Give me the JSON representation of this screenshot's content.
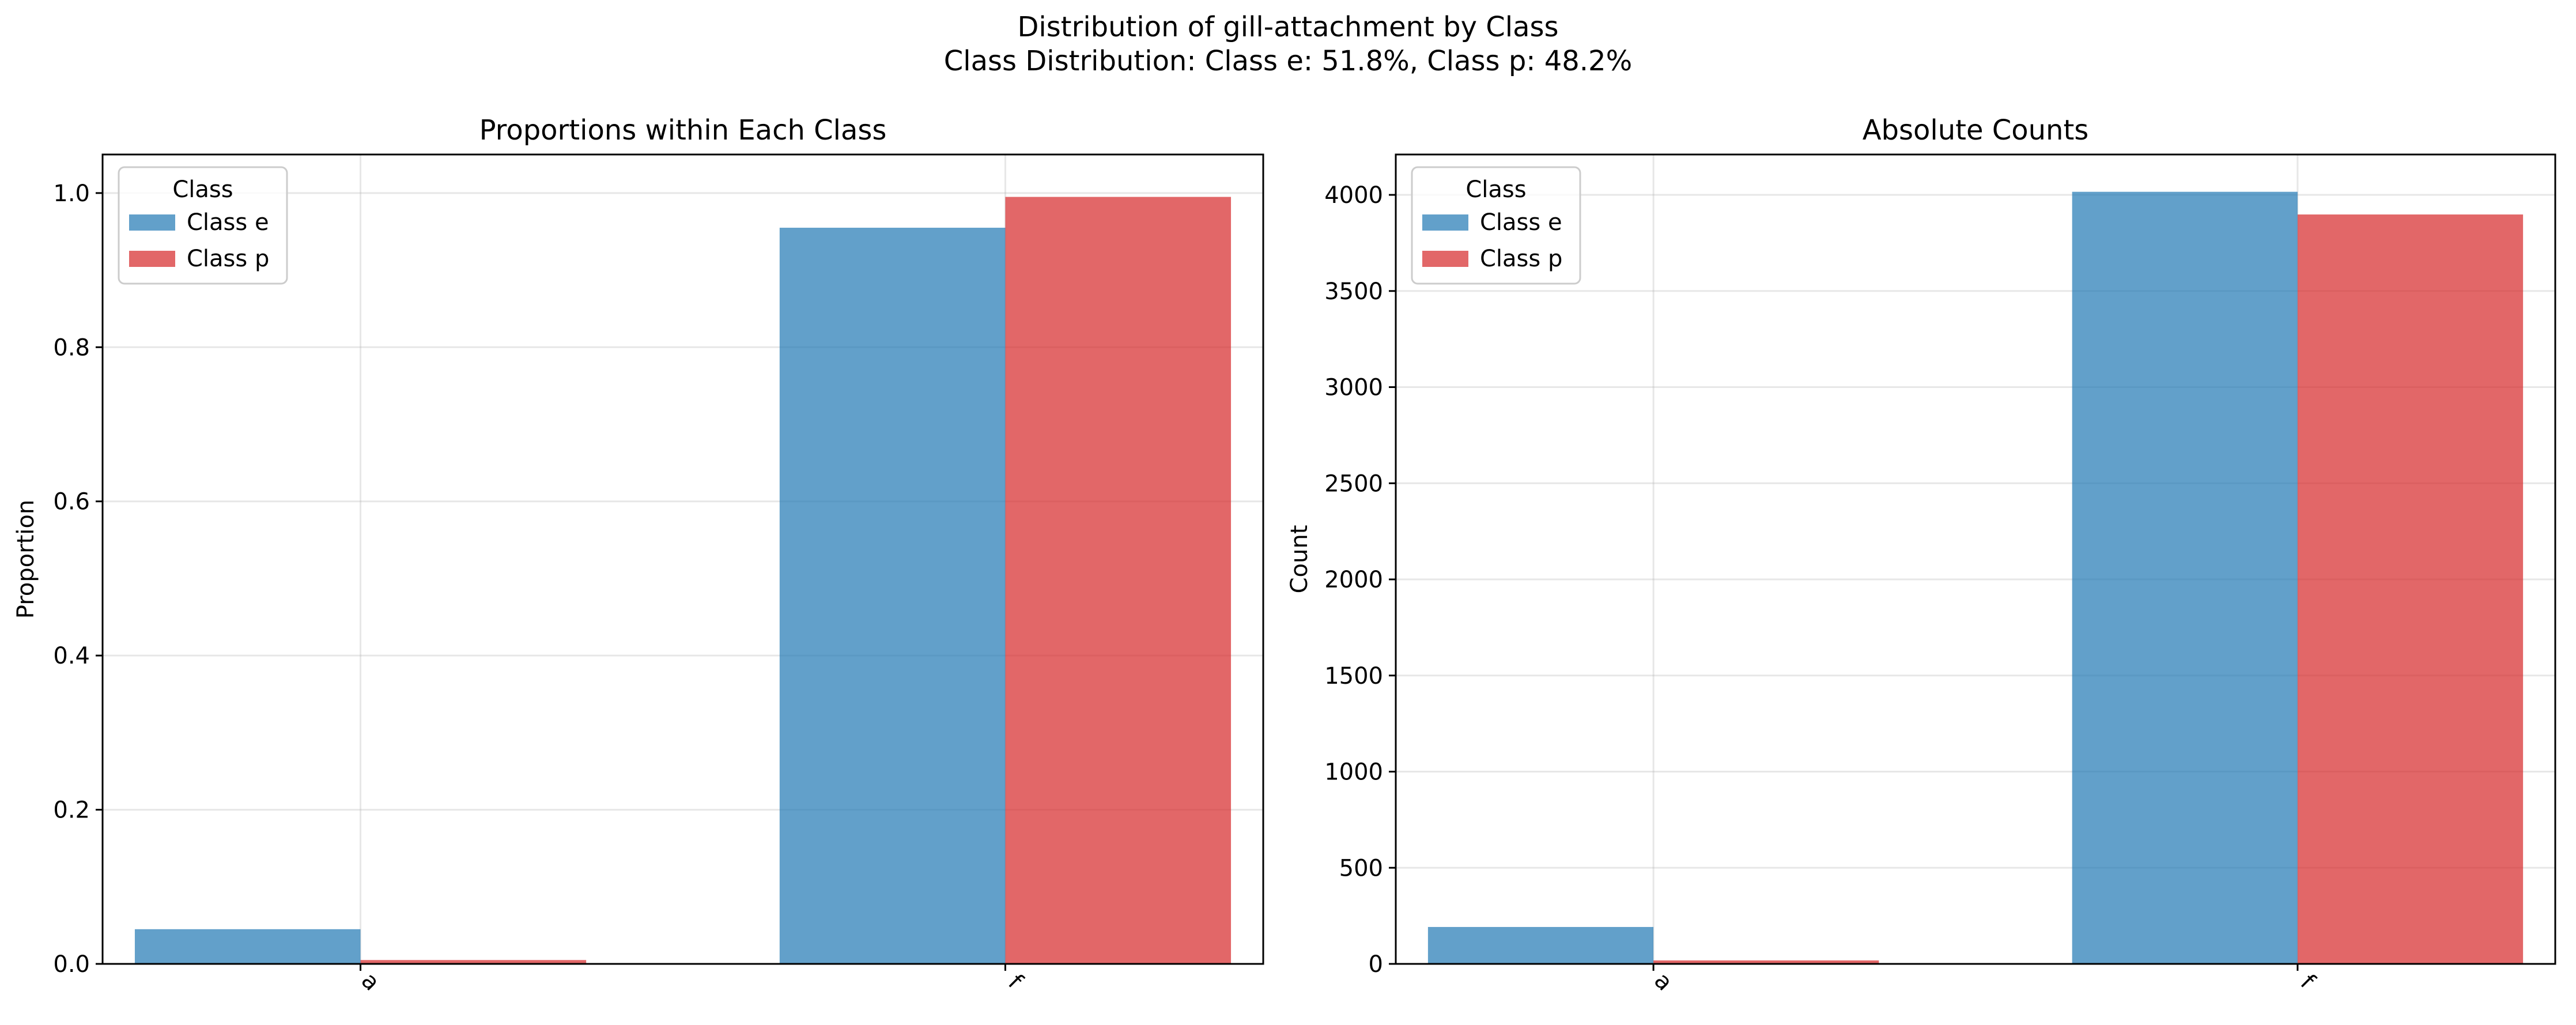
{
  "figure": {
    "title_line1": "Distribution of gill-attachment by Class",
    "title_line2": "Class Distribution: Class e: 51.8%, Class p: 48.2%"
  },
  "chart_data": [
    {
      "type": "bar",
      "title": "Proportions within Each Class",
      "xlabel": "",
      "ylabel": "Proportion",
      "categories": [
        "a",
        "f"
      ],
      "series": [
        {
          "name": "Class e",
          "color": "#1f77b4",
          "values": [
            0.045,
            0.955
          ]
        },
        {
          "name": "Class p",
          "color": "#d62728",
          "values": [
            0.005,
            0.995
          ]
        }
      ],
      "ylim": [
        0,
        1.05
      ],
      "yticks": [
        0.0,
        0.2,
        0.4,
        0.6,
        0.8,
        1.0
      ],
      "ytick_labels": [
        "0.0",
        "0.2",
        "0.4",
        "0.6",
        "0.8",
        "1.0"
      ],
      "grid": true,
      "legend": {
        "title": "Class",
        "position": "top-left"
      }
    },
    {
      "type": "bar",
      "title": "Absolute Counts",
      "xlabel": "",
      "ylabel": "Count",
      "categories": [
        "a",
        "f"
      ],
      "series": [
        {
          "name": "Class e",
          "color": "#1f77b4",
          "values": [
            192,
            4016
          ]
        },
        {
          "name": "Class p",
          "color": "#d62728",
          "values": [
            18,
            3898
          ]
        }
      ],
      "ylim": [
        0,
        4210
      ],
      "yticks": [
        0,
        500,
        1000,
        1500,
        2000,
        2500,
        3000,
        3500,
        4000
      ],
      "ytick_labels": [
        "0",
        "500",
        "1000",
        "1500",
        "2000",
        "2500",
        "3000",
        "3500",
        "4000"
      ],
      "grid": true,
      "legend": {
        "title": "Class",
        "position": "top-left"
      }
    }
  ]
}
